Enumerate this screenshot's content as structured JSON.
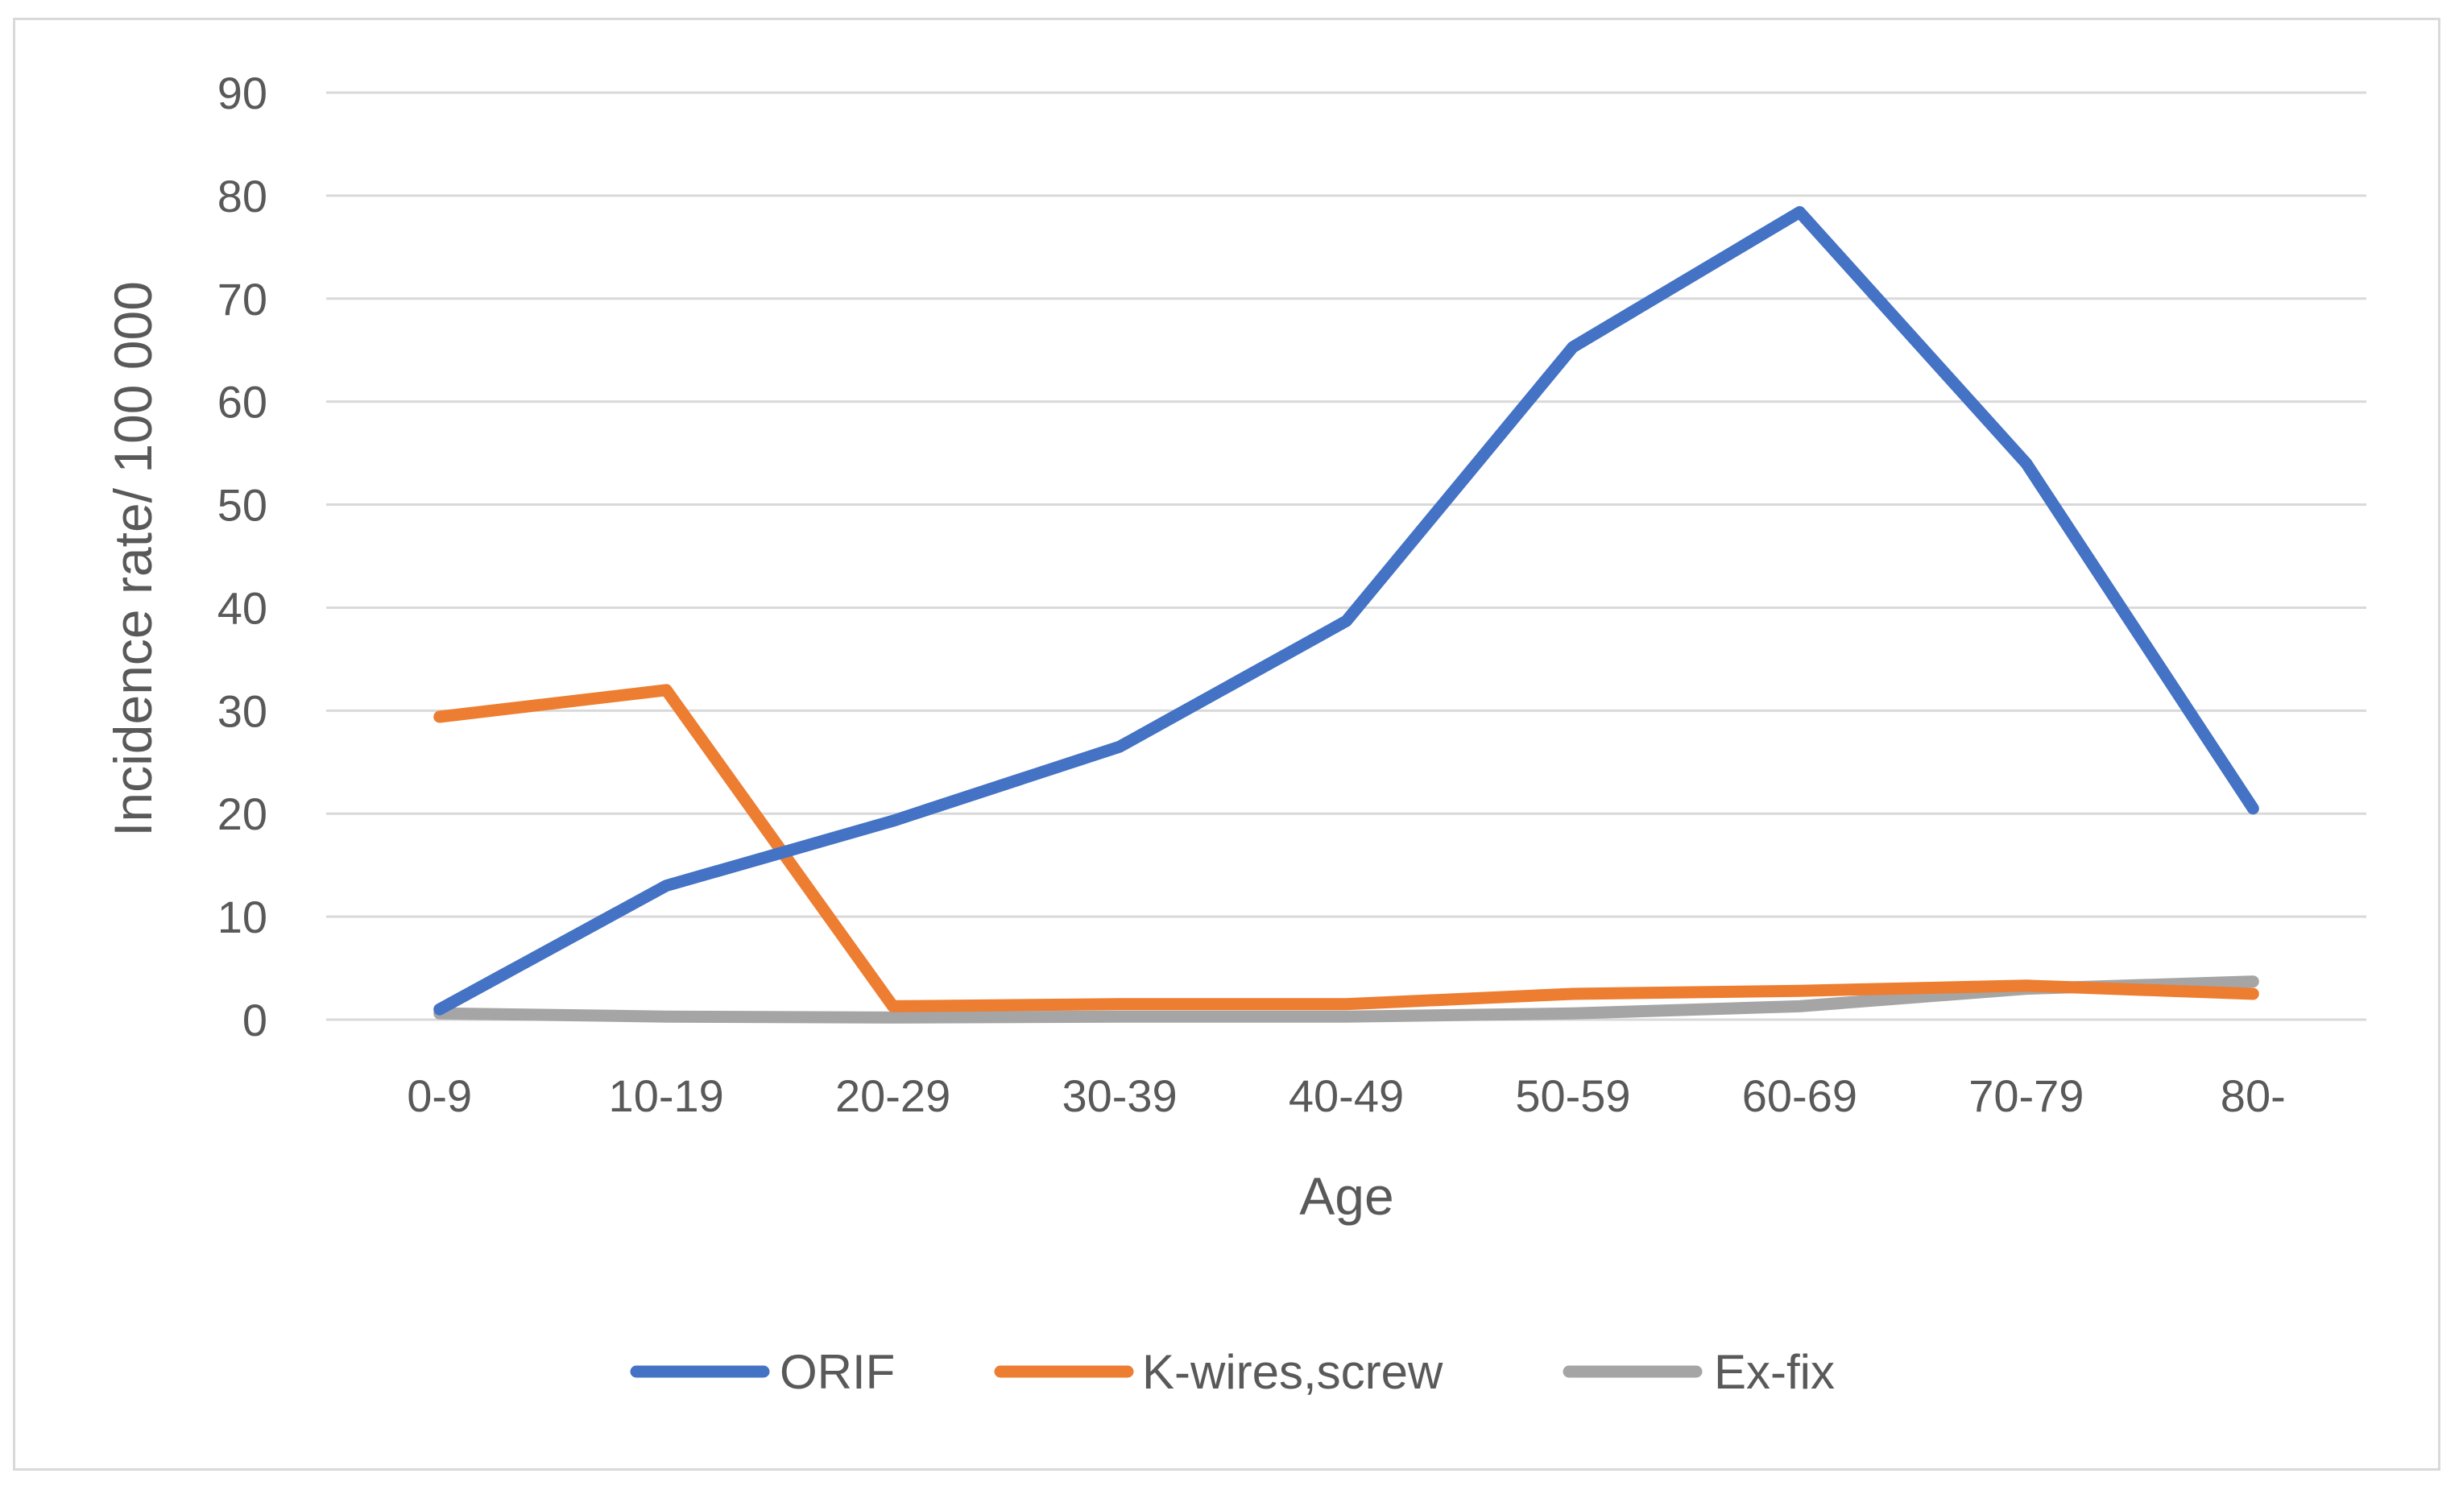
{
  "chart_data": {
    "type": "line",
    "title": "",
    "xlabel": "Age",
    "ylabel": "Incidence rate/ 100 000",
    "ylim": [
      0,
      90
    ],
    "yticks": [
      "0",
      "10",
      "20",
      "30",
      "40",
      "50",
      "60",
      "70",
      "80",
      "90"
    ],
    "categories": [
      "0-9",
      "10-19",
      "20-29",
      "30-39",
      "40-49",
      "50-59",
      "60-69",
      "70-79",
      "80-"
    ],
    "grid": true,
    "legend_position": "bottom",
    "series": [
      {
        "name": "ORIF",
        "color": "#4472c4",
        "values": [
          1.0,
          13.0,
          19.3,
          26.5,
          38.7,
          65.3,
          78.4,
          54.0,
          20.5
        ]
      },
      {
        "name": "K-wires,screw",
        "color": "#ed7d31",
        "values": [
          29.4,
          32.0,
          1.3,
          1.5,
          1.5,
          2.5,
          2.8,
          3.3,
          2.5
        ]
      },
      {
        "name": "Ex-fix",
        "color": "#a5a5a5",
        "values": [
          0.6,
          0.3,
          0.2,
          0.3,
          0.3,
          0.6,
          1.3,
          3.0,
          3.7
        ]
      }
    ]
  }
}
